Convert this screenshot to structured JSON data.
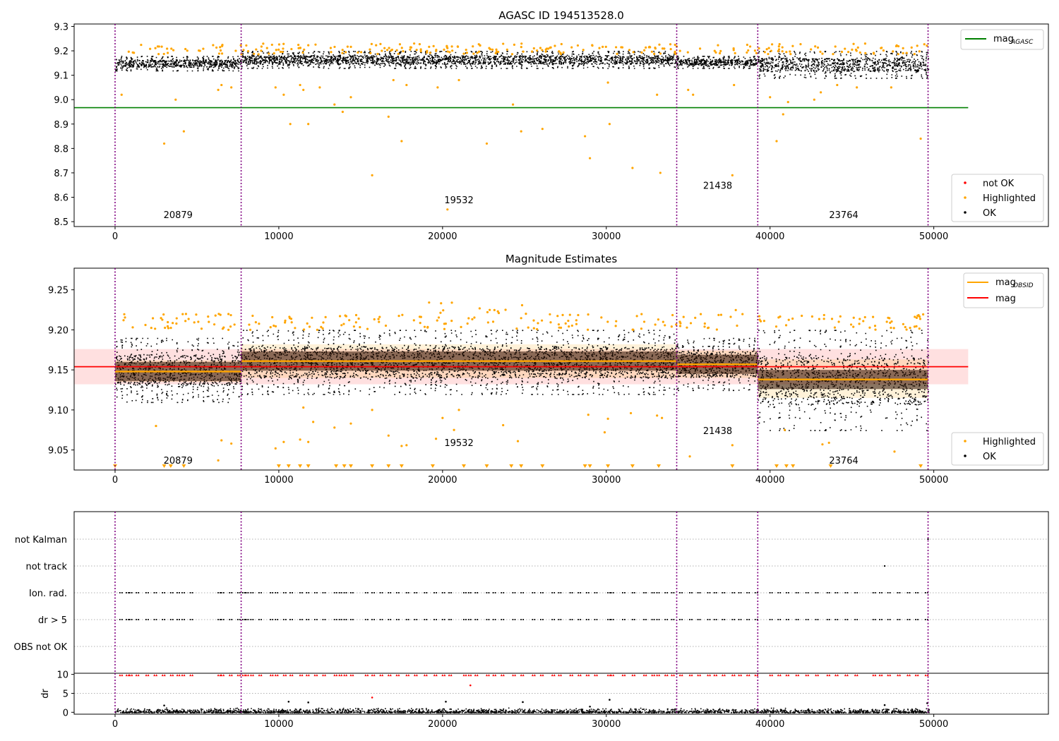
{
  "chart_data": [
    {
      "type": "scatter",
      "title": "AGASC ID 194513528.0",
      "xlabel": "",
      "ylabel": "",
      "xlim": [
        -2500,
        57000
      ],
      "ylim": [
        8.48,
        9.31
      ],
      "xticks": [
        0,
        10000,
        20000,
        30000,
        40000,
        50000
      ],
      "xtick_labels": [
        "0",
        "10000",
        "20000",
        "30000",
        "40000",
        "50000"
      ],
      "yticks": [
        8.5,
        8.6,
        8.7,
        8.8,
        8.9,
        9.0,
        9.1,
        9.2,
        9.3
      ],
      "ytick_labels": [
        "8.5",
        "8.6",
        "8.7",
        "8.8",
        "8.9",
        "9.0",
        "9.1",
        "9.2",
        "9.3"
      ],
      "obs_boundaries": [
        0,
        7700,
        34300,
        39250,
        49650
      ],
      "obs_labels": [
        {
          "text": "20879",
          "x": 3850,
          "y": 8.515
        },
        {
          "text": "19532",
          "x": 21000,
          "y": 8.575
        },
        {
          "text": "21438",
          "x": 36800,
          "y": 8.635
        },
        {
          "text": "23764",
          "x": 44500,
          "y": 8.515
        }
      ],
      "lines": [
        {
          "name": "mag_AGASC",
          "color": "#008000",
          "x": [
            -2500,
            52100
          ],
          "y": [
            8.967,
            8.967
          ]
        }
      ],
      "ok_band": [
        {
          "x0": 0,
          "x1": 7700,
          "lo": 9.12,
          "hi": 9.18
        },
        {
          "x0": 7700,
          "x1": 34300,
          "lo": 9.13,
          "hi": 9.2
        },
        {
          "x0": 34300,
          "x1": 39250,
          "lo": 9.13,
          "hi": 9.18
        },
        {
          "x0": 39250,
          "x1": 49650,
          "lo": 9.09,
          "hi": 9.2
        }
      ],
      "highlighted_outliers": [
        [
          400,
          9.02
        ],
        [
          3000,
          8.82
        ],
        [
          3700,
          9.0
        ],
        [
          4200,
          8.87
        ],
        [
          6300,
          9.04
        ],
        [
          6500,
          9.06
        ],
        [
          7100,
          9.05
        ],
        [
          9800,
          9.05
        ],
        [
          10300,
          9.02
        ],
        [
          10700,
          8.9
        ],
        [
          11300,
          9.06
        ],
        [
          11500,
          9.04
        ],
        [
          11800,
          8.9
        ],
        [
          12500,
          9.05
        ],
        [
          13400,
          8.98
        ],
        [
          13900,
          8.95
        ],
        [
          14400,
          9.01
        ],
        [
          15700,
          8.69
        ],
        [
          16700,
          8.93
        ],
        [
          17000,
          9.08
        ],
        [
          17500,
          8.83
        ],
        [
          17800,
          9.06
        ],
        [
          19700,
          9.05
        ],
        [
          20300,
          8.55
        ],
        [
          21000,
          9.08
        ],
        [
          22700,
          8.82
        ],
        [
          24300,
          8.98
        ],
        [
          24800,
          8.87
        ],
        [
          26100,
          8.88
        ],
        [
          28700,
          8.85
        ],
        [
          29000,
          8.76
        ],
        [
          30200,
          8.9
        ],
        [
          30100,
          9.07
        ],
        [
          31600,
          8.72
        ],
        [
          33300,
          8.7
        ],
        [
          33100,
          9.02
        ],
        [
          35000,
          9.04
        ],
        [
          35300,
          9.02
        ],
        [
          37700,
          8.69
        ],
        [
          37800,
          9.06
        ],
        [
          40000,
          9.01
        ],
        [
          40400,
          8.83
        ],
        [
          40800,
          8.94
        ],
        [
          41100,
          8.99
        ],
        [
          42700,
          9.0
        ],
        [
          43100,
          9.03
        ],
        [
          44100,
          9.06
        ],
        [
          45300,
          9.05
        ],
        [
          47400,
          9.05
        ],
        [
          49200,
          8.84
        ]
      ],
      "legends": [
        {
          "loc": "upper right",
          "entries": [
            {
              "label": "mag",
              "sub": "AGASC",
              "color": "#008000",
              "kind": "line"
            }
          ]
        },
        {
          "loc": "lower right",
          "entries": [
            {
              "label": "not OK",
              "color": "#ff0000",
              "kind": "marker"
            },
            {
              "label": "Highlighted",
              "color": "#ffa500",
              "kind": "marker"
            },
            {
              "label": "OK",
              "color": "#000000",
              "kind": "marker"
            }
          ]
        }
      ]
    },
    {
      "type": "scatter",
      "title": "Magnitude Estimates",
      "xlabel": "",
      "ylabel": "",
      "xlim": [
        -2500,
        57000
      ],
      "ylim": [
        9.025,
        9.277
      ],
      "xticks": [
        0,
        10000,
        20000,
        30000,
        40000,
        50000
      ],
      "xtick_labels": [
        "0",
        "10000",
        "20000",
        "30000",
        "40000",
        "50000"
      ],
      "yticks": [
        9.05,
        9.1,
        9.15,
        9.2,
        9.25
      ],
      "ytick_labels": [
        "9.05",
        "9.10",
        "9.15",
        "9.20",
        "9.25"
      ],
      "obs_boundaries": [
        0,
        7700,
        34300,
        39250,
        49650
      ],
      "obs_labels": [
        {
          "text": "20879",
          "x": 3850,
          "y": 9.033
        },
        {
          "text": "19532",
          "x": 21000,
          "y": 9.055
        },
        {
          "text": "21438",
          "x": 36800,
          "y": 9.07
        },
        {
          "text": "23764",
          "x": 44500,
          "y": 9.033
        }
      ],
      "mag": {
        "name": "mag",
        "color": "#ff0000",
        "value": 9.154,
        "band": [
          9.132,
          9.176
        ],
        "x": [
          -2500,
          52100
        ]
      },
      "mag_obsid": [
        {
          "x0": 0,
          "x1": 7700,
          "value": 9.148,
          "band": [
            9.135,
            9.162
          ]
        },
        {
          "x0": 7700,
          "x1": 34300,
          "value": 9.161,
          "band": [
            9.14,
            9.182
          ]
        },
        {
          "x0": 34300,
          "x1": 39250,
          "value": 9.157,
          "band": [
            9.14,
            9.174
          ]
        },
        {
          "x0": 39250,
          "x1": 49650,
          "value": 9.138,
          "band": [
            9.115,
            9.163
          ]
        }
      ],
      "ok_band": [
        {
          "x0": 0,
          "x1": 7700,
          "lo": 9.11,
          "hi": 9.19
        },
        {
          "x0": 7700,
          "x1": 34300,
          "lo": 9.12,
          "hi": 9.2
        },
        {
          "x0": 34300,
          "x1": 39250,
          "lo": 9.125,
          "hi": 9.19
        },
        {
          "x0": 39250,
          "x1": 49650,
          "lo": 9.075,
          "hi": 9.2
        }
      ],
      "highlighted_outliers": [
        [
          2500,
          9.08
        ],
        [
          6300,
          9.037
        ],
        [
          6500,
          9.062
        ],
        [
          7100,
          9.058
        ],
        [
          9800,
          9.052
        ],
        [
          10300,
          9.06
        ],
        [
          11300,
          9.063
        ],
        [
          11500,
          9.103
        ],
        [
          11800,
          9.06
        ],
        [
          12100,
          9.085
        ],
        [
          13400,
          9.078
        ],
        [
          14400,
          9.083
        ],
        [
          15700,
          9.1
        ],
        [
          16700,
          9.068
        ],
        [
          17500,
          9.055
        ],
        [
          17800,
          9.056
        ],
        [
          19600,
          9.064
        ],
        [
          20000,
          9.09
        ],
        [
          20700,
          9.075
        ],
        [
          21000,
          9.1
        ],
        [
          23700,
          9.081
        ],
        [
          24600,
          9.061
        ],
        [
          28900,
          9.094
        ],
        [
          29900,
          9.072
        ],
        [
          30100,
          9.089
        ],
        [
          31500,
          9.096
        ],
        [
          33100,
          9.093
        ],
        [
          33400,
          9.09
        ],
        [
          35100,
          9.042
        ],
        [
          37700,
          9.056
        ],
        [
          40900,
          9.075
        ],
        [
          43200,
          9.057
        ],
        [
          43600,
          9.059
        ],
        [
          47600,
          9.048
        ]
      ],
      "clipped_x": [
        0,
        3000,
        3400,
        4200,
        10000,
        10600,
        11300,
        11800,
        13500,
        14000,
        14400,
        15700,
        16700,
        17500,
        19400,
        21300,
        22700,
        24200,
        24800,
        26100,
        28700,
        29000,
        30100,
        31600,
        33200,
        37700,
        40400,
        41000,
        41400,
        43700,
        49200
      ],
      "legends": [
        {
          "loc": "upper right",
          "entries": [
            {
              "label": "mag",
              "sub": "OBSID",
              "color": "#ffa500",
              "kind": "line"
            },
            {
              "label": "mag",
              "sub": "",
              "color": "#ff0000",
              "kind": "line"
            }
          ]
        },
        {
          "loc": "lower right",
          "entries": [
            {
              "label": "Highlighted",
              "color": "#ffa500",
              "kind": "marker"
            },
            {
              "label": "OK",
              "color": "#000000",
              "kind": "marker"
            }
          ]
        }
      ]
    },
    {
      "type": "scatter",
      "title": "",
      "xlabel": "",
      "ylabel": "",
      "xlim": [
        -2500,
        57000
      ],
      "categories": [
        "OBS not OK",
        "dr > 5",
        "Ion. rad.",
        "not track",
        "not Kalman"
      ],
      "flag_x": [
        300,
        700,
        900,
        1300,
        1900,
        2400,
        2900,
        3400,
        3800,
        4100,
        4600,
        6300,
        6500,
        7000,
        7500,
        7800,
        8000,
        8300,
        8800,
        9500,
        9800,
        10300,
        10700,
        11300,
        11700,
        12200,
        12700,
        13400,
        13700,
        14000,
        14400,
        15300,
        15700,
        16200,
        16700,
        17200,
        17800,
        18300,
        18900,
        19500,
        20000,
        20400,
        21300,
        21600,
        22000,
        22700,
        23100,
        23600,
        24300,
        24800,
        25500,
        26000,
        26700,
        27100,
        27800,
        28300,
        28800,
        29300,
        30100,
        30300,
        31000,
        31600,
        32300,
        32800,
        33100,
        33600,
        34000,
        34500,
        35100,
        35600,
        36200,
        36600,
        37100,
        37700,
        38100,
        38600,
        39100,
        40000,
        40500,
        41000,
        41600,
        42200,
        42800,
        43500,
        44000,
        44600,
        45200,
        46300,
        46700,
        47200,
        47800,
        48400,
        48900,
        49500
      ],
      "not_track_x": [
        47000
      ],
      "not_kalman_x": [
        49650
      ]
    },
    {
      "type": "scatter",
      "title": "",
      "xlabel": "",
      "ylabel": "dr",
      "xlim": [
        -2500,
        57000
      ],
      "ylim": [
        -0.5,
        10.3
      ],
      "xticks": [
        0,
        10000,
        20000,
        30000,
        40000,
        50000
      ],
      "xtick_labels": [
        "0",
        "10000",
        "20000",
        "30000",
        "40000",
        "50000"
      ],
      "yticks": [
        0,
        5,
        10
      ],
      "ytick_labels": [
        "0",
        "5",
        "10"
      ],
      "clip_value": 9.8,
      "outliers": [
        [
          3000,
          1.8
        ],
        [
          10600,
          2.8
        ],
        [
          11800,
          2.6
        ],
        [
          15700,
          3.9
        ],
        [
          20200,
          2.8
        ],
        [
          21700,
          7.1
        ],
        [
          24900,
          2.7
        ],
        [
          29000,
          1.5
        ],
        [
          30200,
          3.3
        ],
        [
          47000,
          1.9
        ],
        [
          49600,
          2.4
        ]
      ]
    }
  ]
}
